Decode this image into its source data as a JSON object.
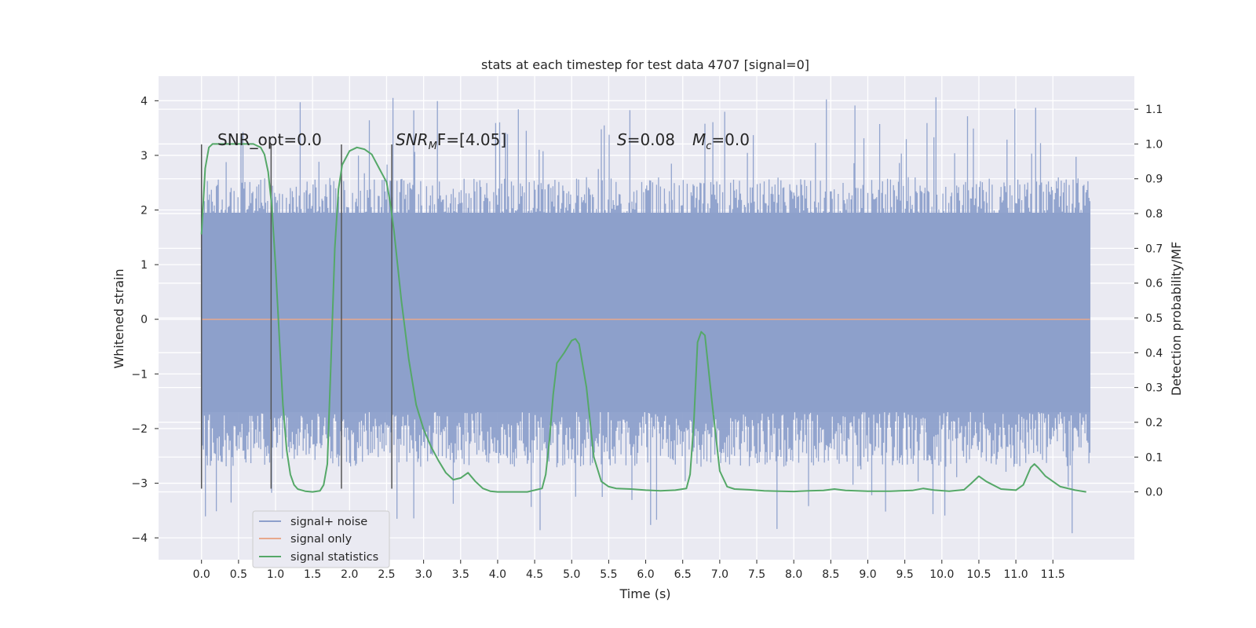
{
  "chart_data": {
    "type": "line",
    "title": "stats at each timestep for test data 4707 [signal=0]",
    "xlabel": "Time (s)",
    "ylabel_left": "Whitened strain",
    "ylabel_right": "Detection probability/MF",
    "xlim": [
      -0.58,
      12.6
    ],
    "ylim_left": [
      -4.4,
      4.45
    ],
    "ylim_right": [
      -0.195,
      1.195
    ],
    "grid": true,
    "x_ticks": [
      "0.0",
      "0.5",
      "1.0",
      "1.5",
      "2.0",
      "2.5",
      "3.0",
      "3.5",
      "4.0",
      "4.5",
      "5.0",
      "5.5",
      "6.0",
      "6.5",
      "7.0",
      "7.5",
      "8.0",
      "8.5",
      "9.0",
      "9.5",
      "10.0",
      "10.5",
      "11.0",
      "11.5"
    ],
    "y_ticks_left": [
      "4",
      "3",
      "2",
      "1",
      "0",
      "−1",
      "−2",
      "−3",
      "−4"
    ],
    "y_ticks_right": [
      "1.1",
      "1.0",
      "0.9",
      "0.8",
      "0.7",
      "0.6",
      "0.5",
      "0.4",
      "0.3",
      "0.2",
      "0.1",
      "0.0"
    ],
    "annotations": {
      "snr_opt": "SNR_opt=0.0",
      "snr_mf_main": "SNR",
      "snr_mf_sub": "M",
      "snr_mf_rest": "F=[4.05]",
      "s_main": "S",
      "s_rest": "=0.08",
      "mc_main": "M",
      "mc_sub": "c",
      "mc_rest": "=0.0"
    },
    "markers_x": [
      0.0,
      0.94,
      1.89,
      2.57
    ],
    "marker_y_range": [
      -3.1,
      3.2
    ],
    "series": [
      {
        "name": "signal+ noise",
        "color": "#8da0cb",
        "kind": "noise",
        "x_range": [
          0.0,
          12.0
        ],
        "envelope_y": [
          -2.7,
          2.6
        ],
        "peak_y": [
          -3.95,
          4.1
        ]
      },
      {
        "name": "signal only",
        "color": "#e8a88c",
        "x": [
          0.0,
          12.0
        ],
        "y": [
          0.0,
          0.0
        ]
      },
      {
        "name": "signal statistics",
        "color": "#55a868",
        "x": [
          0.0,
          0.05,
          0.1,
          0.15,
          0.2,
          0.3,
          0.4,
          0.5,
          0.6,
          0.7,
          0.8,
          0.85,
          0.9,
          0.95,
          1.0,
          1.05,
          1.1,
          1.15,
          1.2,
          1.25,
          1.3,
          1.4,
          1.5,
          1.6,
          1.65,
          1.7,
          1.75,
          1.8,
          1.85,
          1.9,
          1.95,
          2.0,
          2.1,
          2.2,
          2.3,
          2.4,
          2.5,
          2.55,
          2.6,
          2.65,
          2.7,
          2.8,
          2.9,
          3.0,
          3.1,
          3.2,
          3.3,
          3.4,
          3.5,
          3.6,
          3.7,
          3.8,
          3.9,
          4.0,
          4.2,
          4.4,
          4.6,
          4.65,
          4.7,
          4.75,
          4.8,
          4.9,
          5.0,
          5.05,
          5.1,
          5.2,
          5.3,
          5.4,
          5.5,
          5.6,
          5.8,
          6.0,
          6.2,
          6.4,
          6.55,
          6.6,
          6.65,
          6.7,
          6.75,
          6.8,
          6.85,
          6.9,
          7.0,
          7.1,
          7.2,
          7.4,
          7.6,
          7.8,
          8.0,
          8.2,
          8.4,
          8.55,
          8.7,
          9.0,
          9.3,
          9.6,
          9.75,
          9.9,
          10.1,
          10.3,
          10.4,
          10.5,
          10.6,
          10.8,
          11.0,
          11.1,
          11.2,
          11.25,
          11.3,
          11.4,
          11.6,
          11.8,
          11.95
        ],
        "y": [
          0.74,
          0.93,
          0.99,
          1.0,
          1.0,
          1.0,
          1.0,
          1.0,
          1.0,
          1.0,
          0.99,
          0.97,
          0.92,
          0.82,
          0.65,
          0.45,
          0.25,
          0.12,
          0.05,
          0.02,
          0.008,
          0.002,
          0.0,
          0.003,
          0.02,
          0.08,
          0.38,
          0.7,
          0.87,
          0.94,
          0.96,
          0.98,
          0.99,
          0.985,
          0.97,
          0.93,
          0.89,
          0.83,
          0.75,
          0.65,
          0.55,
          0.38,
          0.25,
          0.18,
          0.13,
          0.09,
          0.055,
          0.035,
          0.04,
          0.055,
          0.03,
          0.01,
          0.002,
          0.0,
          0.0,
          0.0,
          0.01,
          0.05,
          0.15,
          0.28,
          0.37,
          0.4,
          0.435,
          0.44,
          0.425,
          0.3,
          0.1,
          0.03,
          0.015,
          0.01,
          0.008,
          0.005,
          0.003,
          0.005,
          0.01,
          0.05,
          0.2,
          0.43,
          0.46,
          0.45,
          0.35,
          0.25,
          0.06,
          0.015,
          0.008,
          0.006,
          0.003,
          0.002,
          0.001,
          0.003,
          0.004,
          0.008,
          0.004,
          0.002,
          0.002,
          0.004,
          0.01,
          0.005,
          0.002,
          0.006,
          0.025,
          0.045,
          0.03,
          0.008,
          0.005,
          0.02,
          0.07,
          0.08,
          0.07,
          0.045,
          0.015,
          0.005,
          0.0
        ]
      }
    ],
    "legend": {
      "position": "lower-left",
      "entries": [
        "signal+ noise",
        "signal only",
        "signal statistics"
      ]
    },
    "colors": {
      "plot_background": "#eaeaf2",
      "grid": "#ffffff",
      "marker_lines": "#555555"
    }
  }
}
